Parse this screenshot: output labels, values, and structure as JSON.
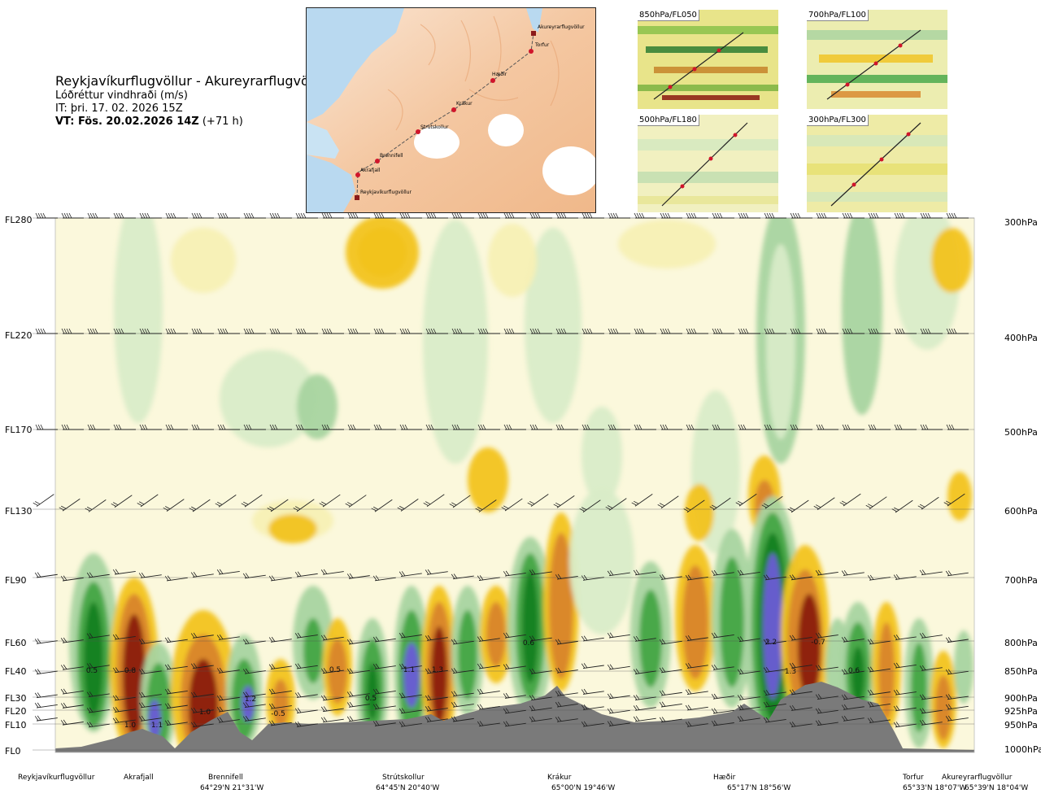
{
  "title": {
    "route": "Reykjavíkurflugvöllur - Akureyrarflugvöllur",
    "parameter": "Lóðréttur vindhraði (m/s)",
    "issue_time": "IT: þri. 17. 02. 2026 15Z",
    "valid_time_bold": "VT: Fös. 20.02.2026 14Z",
    "valid_time_offset": "(+71 h)"
  },
  "route_map": {
    "points": [
      {
        "name": "Akureyrarflugvöllur"
      },
      {
        "name": "Torfur"
      },
      {
        "name": "Hæðir"
      },
      {
        "name": "Krákur"
      },
      {
        "name": "Strútskollur"
      },
      {
        "name": "Brennifell"
      },
      {
        "name": "Akrafjall"
      },
      {
        "name": "Reykjavíkurflugvöllur"
      }
    ]
  },
  "insets": [
    {
      "label": "850hPa/FL050"
    },
    {
      "label": "700hPa/FL100"
    },
    {
      "label": "500hPa/FL180"
    },
    {
      "label": "300hPa/FL300"
    }
  ],
  "colors": {
    "strong_down": "#8b1a10",
    "mid_down": "#d9852a",
    "weak_down": "#f2c31f",
    "faint_down": "#f7f0b4",
    "neutral": "#fbf8dc",
    "faint_up": "#d9ecc8",
    "weak_up": "#a8d4a0",
    "mid_up": "#43a646",
    "strong_up": "#17801e",
    "max_up": "#6a5bd6",
    "terrain": "#7a7a7a"
  },
  "chart_data": {
    "type": "heatmap",
    "title": "Lóðréttur vindhraði (m/s)",
    "y_left_ticks": [
      "FL280",
      "FL220",
      "FL170",
      "FL130",
      "FL90",
      "FL60",
      "FL40",
      "FL30",
      "FL20",
      "FL10",
      "FL0"
    ],
    "y_right_ticks": [
      "300hPa",
      "400hPa",
      "500hPa",
      "600hPa",
      "700hPa",
      "800hPa",
      "850hPa",
      "900hPa",
      "925hPa",
      "950hPa",
      "1000hPa"
    ],
    "x_locations": [
      {
        "name": "Reykjavíkurflugvöllur",
        "coord": ""
      },
      {
        "name": "Akrafjall",
        "coord": ""
      },
      {
        "name": "Brennifell",
        "coord": "64°29'N 21°31'W"
      },
      {
        "name": "Strútskollur",
        "coord": "64°45'N 20°40'W"
      },
      {
        "name": "Krákur",
        "coord": "65°00'N 19°46'W"
      },
      {
        "name": "Hæðir",
        "coord": "65°17'N 18°56'W"
      },
      {
        "name": "Torfur",
        "coord": "65°33'N 18°07'W"
      },
      {
        "name": "Akureyrarflugvöllur",
        "coord": "65°39'N 18°04'W"
      }
    ],
    "value_labels": [
      "0.5",
      "0.8",
      "1.0",
      "1.1",
      "1.0",
      "1.2",
      "-0.5",
      "0.5",
      "0.5",
      "1.1",
      "1.3",
      "0.6",
      "2.2",
      "-0.7",
      "1.3",
      "0.6"
    ]
  }
}
